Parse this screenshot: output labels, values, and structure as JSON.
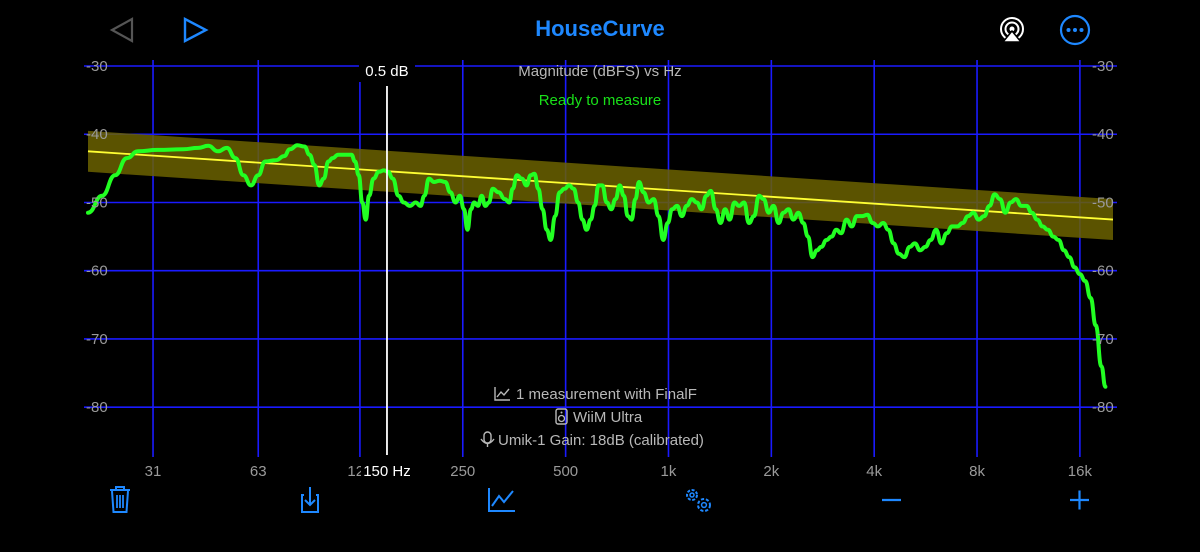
{
  "app": {
    "title": "HouseCurve"
  },
  "colors": {
    "accent": "#1e88ff",
    "grid": "#1a1aff",
    "curve": "#22ff22",
    "target": "#ffff33",
    "band": "#6b6200",
    "status": "#19e019"
  },
  "header": {
    "back_icon": "triangle-left-icon",
    "play_icon": "triangle-right-icon",
    "airplay_icon": "airplay-icon",
    "more_icon": "ellipsis-circle-icon"
  },
  "chart": {
    "subtitle": "Magnitude (dBFS) vs Hz",
    "status": "Ready to measure",
    "cursor_label": "0.5 dB",
    "cursor_freq_label": "150 Hz",
    "info": {
      "measurement": "1 measurement with FinalF",
      "device": "WiiM Ultra",
      "mic": "Umik-1  Gain: 18dB (calibrated)"
    }
  },
  "chart_data": {
    "type": "line",
    "title": "Magnitude (dBFS) vs Hz",
    "x_scale": "log",
    "x_ticks": [
      {
        "hz": 31,
        "label": "31"
      },
      {
        "hz": 63,
        "label": "63"
      },
      {
        "hz": 125,
        "label": "125"
      },
      {
        "hz": 250,
        "label": "250"
      },
      {
        "hz": 500,
        "label": "500"
      },
      {
        "hz": 1000,
        "label": "1k"
      },
      {
        "hz": 2000,
        "label": "2k"
      },
      {
        "hz": 4000,
        "label": "4k"
      },
      {
        "hz": 8000,
        "label": "8k"
      },
      {
        "hz": 16000,
        "label": "16k"
      }
    ],
    "xlim": [
      20,
      20000
    ],
    "ylim": [
      -87,
      -30
    ],
    "y_ticks": [
      -30,
      -40,
      -50,
      -60,
      -70,
      -80
    ],
    "cursor": {
      "hz": 150,
      "db": 0.5
    },
    "target": {
      "start": [
        20,
        -42.5
      ],
      "end": [
        20000,
        -52.5
      ],
      "band": 3
    },
    "series": [
      {
        "points": [
          [
            20,
            -51.5
          ],
          [
            22,
            -49
          ],
          [
            24,
            -46
          ],
          [
            26,
            -43.5
          ],
          [
            28,
            -42.5
          ],
          [
            32,
            -42.3
          ],
          [
            38,
            -42.2
          ],
          [
            42,
            -42
          ],
          [
            45,
            -41.7
          ],
          [
            48,
            -42.5
          ],
          [
            51,
            -42.0
          ],
          [
            54,
            -43.5
          ],
          [
            57,
            -46
          ],
          [
            60,
            -47.5
          ],
          [
            63,
            -46
          ],
          [
            66,
            -44
          ],
          [
            71,
            -43.8
          ],
          [
            75,
            -43.2
          ],
          [
            78,
            -42.2
          ],
          [
            82,
            -41.6
          ],
          [
            86,
            -41.8
          ],
          [
            89,
            -43
          ],
          [
            92,
            -44.5
          ],
          [
            95,
            -47.5
          ],
          [
            98,
            -46.5
          ],
          [
            101,
            -44
          ],
          [
            104,
            -43.5
          ],
          [
            108,
            -43
          ],
          [
            113,
            -43
          ],
          [
            118,
            -43
          ],
          [
            121,
            -44
          ],
          [
            124,
            -46
          ],
          [
            127,
            -50
          ],
          [
            130,
            -52.5
          ],
          [
            133,
            -49
          ],
          [
            137,
            -46.5
          ],
          [
            142,
            -45.5
          ],
          [
            147,
            -45.3
          ],
          [
            151,
            -45.5
          ],
          [
            156,
            -46.5
          ],
          [
            162,
            -49
          ],
          [
            168,
            -50
          ],
          [
            175,
            -50.5
          ],
          [
            182,
            -50
          ],
          [
            188,
            -50.5
          ],
          [
            193,
            -49
          ],
          [
            199,
            -46.5
          ],
          [
            206,
            -47
          ],
          [
            214,
            -46.8
          ],
          [
            222,
            -47
          ],
          [
            230,
            -48.5
          ],
          [
            238,
            -50
          ],
          [
            245,
            -49
          ],
          [
            252,
            -51
          ],
          [
            258,
            -54
          ],
          [
            264,
            -51
          ],
          [
            270,
            -50
          ],
          [
            277,
            -50.5
          ],
          [
            284,
            -49
          ],
          [
            291,
            -50.5
          ],
          [
            298,
            -50
          ],
          [
            306,
            -48
          ],
          [
            318,
            -48.5
          ],
          [
            332,
            -49.5
          ],
          [
            342,
            -50
          ],
          [
            350,
            -48
          ],
          [
            360,
            -46
          ],
          [
            372,
            -46.5
          ],
          [
            384,
            -47.5
          ],
          [
            395,
            -46
          ],
          [
            405,
            -45.8
          ],
          [
            416,
            -48
          ],
          [
            428,
            -51
          ],
          [
            440,
            -54
          ],
          [
            452,
            -55.5
          ],
          [
            466,
            -52
          ],
          [
            480,
            -48.5
          ],
          [
            496,
            -48
          ],
          [
            512,
            -47.5
          ],
          [
            528,
            -48
          ],
          [
            544,
            -50
          ],
          [
            560,
            -52.5
          ],
          [
            576,
            -54
          ],
          [
            592,
            -52.5
          ],
          [
            608,
            -50.5
          ],
          [
            624,
            -47.5
          ],
          [
            640,
            -47.5
          ],
          [
            660,
            -50
          ],
          [
            680,
            -51
          ],
          [
            700,
            -49.5
          ],
          [
            720,
            -47.5
          ],
          [
            740,
            -49
          ],
          [
            760,
            -52
          ],
          [
            780,
            -52.5
          ],
          [
            800,
            -49.5
          ],
          [
            820,
            -47
          ],
          [
            845,
            -48.5
          ],
          [
            875,
            -50
          ],
          [
            905,
            -49.5
          ],
          [
            935,
            -52
          ],
          [
            965,
            -55.5
          ],
          [
            995,
            -53
          ],
          [
            1025,
            -51
          ],
          [
            1060,
            -50.5
          ],
          [
            1095,
            -52
          ],
          [
            1130,
            -50.5
          ],
          [
            1170,
            -49.5
          ],
          [
            1210,
            -50
          ],
          [
            1250,
            -51
          ],
          [
            1290,
            -49
          ],
          [
            1330,
            -48.3
          ],
          [
            1375,
            -51
          ],
          [
            1420,
            -53
          ],
          [
            1465,
            -51
          ],
          [
            1510,
            -52.5
          ],
          [
            1560,
            -50
          ],
          [
            1610,
            -50.5
          ],
          [
            1665,
            -50
          ],
          [
            1720,
            -53
          ],
          [
            1780,
            -52
          ],
          [
            1840,
            -49
          ],
          [
            1900,
            -49.5
          ],
          [
            1965,
            -51.5
          ],
          [
            2030,
            -50.5
          ],
          [
            2100,
            -53
          ],
          [
            2170,
            -51.5
          ],
          [
            2245,
            -51
          ],
          [
            2320,
            -52.5
          ],
          [
            2400,
            -51.5
          ],
          [
            2480,
            -53
          ],
          [
            2560,
            -55
          ],
          [
            2640,
            -58
          ],
          [
            2720,
            -57
          ],
          [
            2800,
            -56.5
          ],
          [
            2900,
            -55.5
          ],
          [
            3000,
            -55
          ],
          [
            3100,
            -54
          ],
          [
            3200,
            -54.5
          ],
          [
            3320,
            -52.5
          ],
          [
            3440,
            -53.5
          ],
          [
            3560,
            -52
          ],
          [
            3690,
            -52
          ],
          [
            3820,
            -51.8
          ],
          [
            3960,
            -53
          ],
          [
            4100,
            -53.5
          ],
          [
            4250,
            -53
          ],
          [
            4400,
            -54
          ],
          [
            4560,
            -56
          ],
          [
            4720,
            -57.5
          ],
          [
            4900,
            -58
          ],
          [
            5080,
            -56.5
          ],
          [
            5260,
            -56
          ],
          [
            5450,
            -57
          ],
          [
            5650,
            -56.5
          ],
          [
            5850,
            -55.5
          ],
          [
            6070,
            -54
          ],
          [
            6290,
            -56
          ],
          [
            6520,
            -54.5
          ],
          [
            6760,
            -53.5
          ],
          [
            7010,
            -53.5
          ],
          [
            7260,
            -53
          ],
          [
            7530,
            -52
          ],
          [
            7800,
            -51.5
          ],
          [
            8090,
            -52.5
          ],
          [
            8390,
            -52
          ],
          [
            8700,
            -50.5
          ],
          [
            9010,
            -48.8
          ],
          [
            9340,
            -49.5
          ],
          [
            9680,
            -51.5
          ],
          [
            10030,
            -50
          ],
          [
            10400,
            -49.5
          ],
          [
            10780,
            -50.5
          ],
          [
            11170,
            -50.5
          ],
          [
            11580,
            -51.5
          ],
          [
            12000,
            -52.5
          ],
          [
            12440,
            -53.5
          ],
          [
            12900,
            -54
          ],
          [
            13370,
            -55
          ],
          [
            13860,
            -55.5
          ],
          [
            14370,
            -57
          ],
          [
            14890,
            -58
          ],
          [
            15430,
            -59.5
          ],
          [
            16000,
            -60.5
          ],
          [
            16580,
            -61.5
          ],
          [
            17200,
            -64
          ],
          [
            17800,
            -68
          ],
          [
            18500,
            -74
          ],
          [
            19000,
            -77
          ]
        ]
      }
    ]
  },
  "toolbar": {
    "items": [
      {
        "name": "trash",
        "icon": "trash-icon"
      },
      {
        "name": "save",
        "icon": "download-icon"
      },
      {
        "name": "chart",
        "icon": "line-chart-icon"
      },
      {
        "name": "settings",
        "icon": "gears-icon"
      },
      {
        "name": "minus",
        "icon": "minus-icon"
      },
      {
        "name": "plus",
        "icon": "plus-icon"
      }
    ]
  }
}
